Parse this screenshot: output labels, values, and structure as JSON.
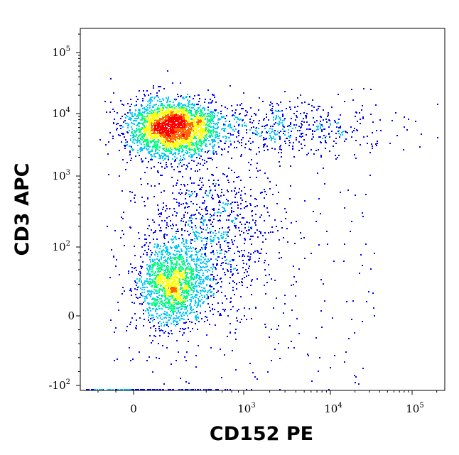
{
  "chart_data": {
    "type": "scatter",
    "style": "density dot plot (flow cytometry)",
    "title": "",
    "xlabel": "CD152 PE",
    "ylabel": "CD3 APC",
    "x_scale": "biexponential",
    "y_scale": "biexponential",
    "xlim": [
      -600,
      200000
    ],
    "ylim": [
      -120,
      250000
    ],
    "x_ticks": [
      {
        "value": 0,
        "base": "0",
        "exp": ""
      },
      {
        "value": 1000,
        "base": "10",
        "exp": "3"
      },
      {
        "value": 10000,
        "base": "10",
        "exp": "4"
      },
      {
        "value": 100000,
        "base": "10",
        "exp": "5"
      }
    ],
    "y_ticks": [
      {
        "value": -100,
        "base": "-10",
        "exp": "2"
      },
      {
        "value": 0,
        "base": "0",
        "exp": ""
      },
      {
        "value": 100,
        "base": "10",
        "exp": "2"
      },
      {
        "value": 1000,
        "base": "10",
        "exp": "3"
      },
      {
        "value": 10000,
        "base": "10",
        "exp": "4"
      },
      {
        "value": 100000,
        "base": "10",
        "exp": "5"
      }
    ],
    "colormap": [
      "#0000ff",
      "#00c8ff",
      "#00ff80",
      "#ffff00",
      "#ff6600",
      "#ff0000"
    ],
    "populations": [
      {
        "name": "",
        "x_center": 40,
        "y_center": 6000,
        "events": 2600,
        "peak_density": "red"
      },
      {
        "name": "",
        "x_center": 40,
        "y_center": 20,
        "events": 1500,
        "peak_density": "green"
      },
      {
        "name": "",
        "x_center": 250,
        "y_center": 150,
        "events": 900,
        "peak_density": "cyan"
      },
      {
        "name": "",
        "x_center": 3000,
        "y_center": 6000,
        "events": 500,
        "peak_density": "blue"
      }
    ],
    "grid": false,
    "legend": "none"
  }
}
